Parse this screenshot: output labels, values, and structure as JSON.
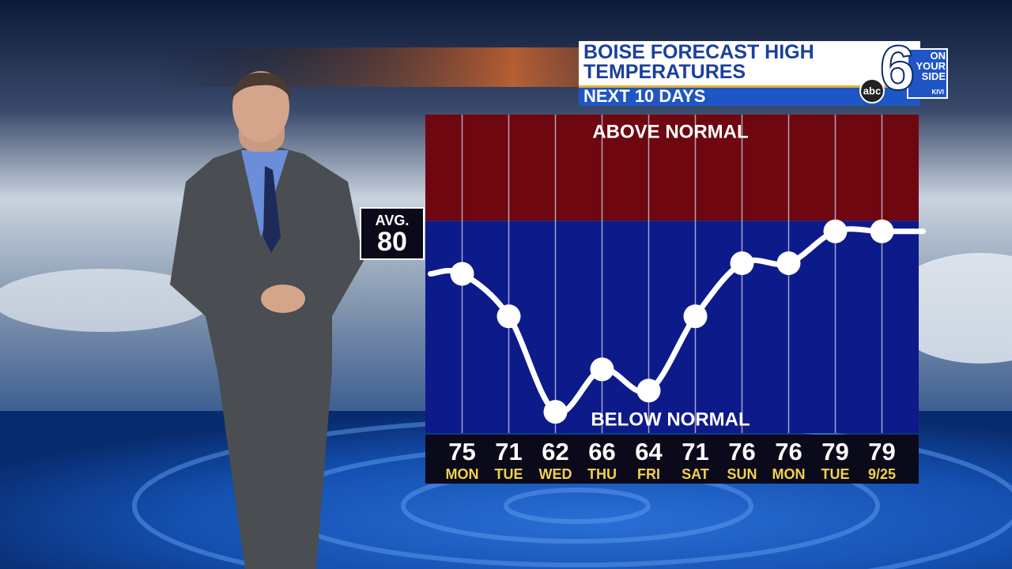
{
  "chart_data": {
    "type": "line",
    "title": "BOISE FORECAST HIGH TEMPERATURES",
    "subtitle": "NEXT 10 DAYS",
    "categories": [
      "MON",
      "TUE",
      "WED",
      "THU",
      "FRI",
      "SAT",
      "SUN",
      "MON",
      "TUE",
      "9/25"
    ],
    "values": [
      75,
      71,
      62,
      66,
      64,
      71,
      76,
      76,
      79,
      79
    ],
    "color": "#ffffff",
    "normal": {
      "label": "AVG.",
      "value": 80
    },
    "above_label": "ABOVE NORMAL",
    "below_label": "BELOW NORMAL",
    "ylim": [
      60,
      90
    ]
  },
  "logo": {
    "network": "abc",
    "channel": "6",
    "slogan": "ON YOUR SIDE",
    "callsign": "KIVI"
  }
}
